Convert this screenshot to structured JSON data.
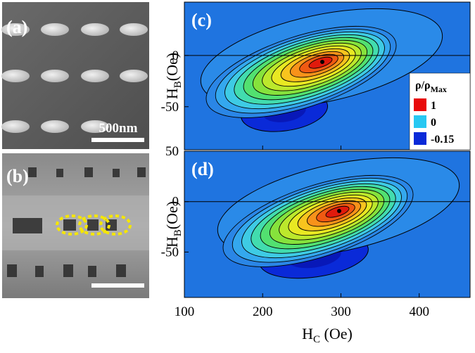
{
  "panels": [
    {
      "label": "(a)",
      "scale_bar": "500nm"
    },
    {
      "label": "(b)"
    },
    {
      "label": "(c)",
      "ylim": [
        -92,
        52
      ],
      "yticks": [
        -50,
        0
      ]
    },
    {
      "label": "(d)",
      "ylim": [
        -95,
        50
      ],
      "yticks": [
        -50,
        0,
        50
      ]
    }
  ],
  "x_axis": {
    "main": "H",
    "sub": "C",
    "unit": " (Oe)",
    "xlim": [
      100,
      465
    ],
    "xticks": [
      100,
      200,
      300,
      400
    ]
  },
  "y_axis": {
    "main": "H",
    "sub": "B",
    "unit": "(Oe)"
  },
  "legend": {
    "title_main": "ρ/ρ",
    "title_sub": "Max",
    "entries": [
      {
        "label": "1",
        "color": "#e80a0a"
      },
      {
        "label": "0",
        "color": "#27c8f2"
      },
      {
        "label": "-0.15",
        "color": "#0a2ad8"
      }
    ]
  }
}
